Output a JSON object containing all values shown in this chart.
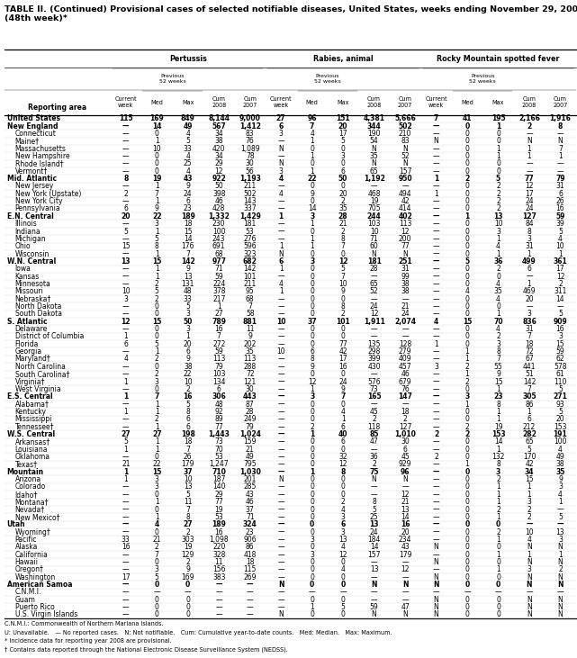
{
  "title_line1": "TABLE II. (Continued) Provisional cases of selected notifiable diseases, United States, weeks ending November 29, 2008, and December 1, 2007",
  "title_line2": "(48th week)*",
  "footnotes": [
    "C.N.M.I.: Commonwealth of Northern Mariana Islands.",
    "U: Unavailable.   — No reported cases.   N: Not notifiable.   Cum: Cumulative year-to-date counts.   Med: Median.   Max: Maximum.",
    "* Incidence data for reporting year 2008 are provisional.",
    "† Contains data reported through the National Electronic Disease Surveillance System (NEDSS)."
  ],
  "col_groups": [
    "Pertussis",
    "Rabies, animal",
    "Rocky Mountain spotted fever"
  ],
  "rows": [
    [
      "United States",
      "115",
      "169",
      "849",
      "8,144",
      "9,000",
      "27",
      "96",
      "151",
      "4,381",
      "5,666",
      "7",
      "41",
      "195",
      "2,166",
      "1,916"
    ],
    [
      "New England",
      "—",
      "14",
      "49",
      "567",
      "1,412",
      "6",
      "7",
      "20",
      "344",
      "502",
      "—",
      "0",
      "1",
      "2",
      "8"
    ],
    [
      "Connecticut",
      "—",
      "0",
      "4",
      "34",
      "83",
      "3",
      "4",
      "17",
      "190",
      "210",
      "—",
      "0",
      "0",
      "—",
      "—"
    ],
    [
      "Maine†",
      "—",
      "1",
      "5",
      "38",
      "76",
      "—",
      "1",
      "5",
      "54",
      "83",
      "N",
      "0",
      "0",
      "N",
      "N"
    ],
    [
      "Massachusetts",
      "—",
      "10",
      "33",
      "420",
      "1,089",
      "N",
      "0",
      "0",
      "N",
      "N",
      "—",
      "0",
      "1",
      "1",
      "7"
    ],
    [
      "New Hampshire",
      "—",
      "0",
      "4",
      "34",
      "78",
      "—",
      "1",
      "3",
      "35",
      "52",
      "—",
      "0",
      "1",
      "1",
      "1"
    ],
    [
      "Rhode Island†",
      "—",
      "0",
      "25",
      "29",
      "30",
      "N",
      "0",
      "0",
      "N",
      "N",
      "—",
      "0",
      "0",
      "—",
      "—"
    ],
    [
      "Vermont†",
      "—",
      "0",
      "4",
      "12",
      "56",
      "3",
      "1",
      "6",
      "65",
      "157",
      "—",
      "0",
      "0",
      "—",
      "—"
    ],
    [
      "Mid. Atlantic",
      "8",
      "19",
      "43",
      "922",
      "1,193",
      "4",
      "22",
      "50",
      "1,192",
      "950",
      "1",
      "2",
      "5",
      "77",
      "79"
    ],
    [
      "New Jersey",
      "—",
      "1",
      "9",
      "50",
      "211",
      "—",
      "0",
      "0",
      "—",
      "—",
      "—",
      "0",
      "2",
      "12",
      "31"
    ],
    [
      "New York (Upstate)",
      "2",
      "7",
      "24",
      "398",
      "502",
      "4",
      "9",
      "20",
      "468",
      "494",
      "1",
      "0",
      "2",
      "17",
      "6"
    ],
    [
      "New York City",
      "—",
      "1",
      "6",
      "46",
      "143",
      "—",
      "0",
      "2",
      "19",
      "42",
      "—",
      "0",
      "2",
      "24",
      "26"
    ],
    [
      "Pennsylvania",
      "6",
      "9",
      "23",
      "428",
      "337",
      "—",
      "14",
      "35",
      "705",
      "414",
      "—",
      "0",
      "2",
      "24",
      "16"
    ],
    [
      "E.N. Central",
      "20",
      "22",
      "189",
      "1,332",
      "1,429",
      "1",
      "3",
      "28",
      "244",
      "402",
      "—",
      "1",
      "13",
      "127",
      "59"
    ],
    [
      "Illinois",
      "—",
      "3",
      "18",
      "230",
      "181",
      "—",
      "1",
      "21",
      "103",
      "113",
      "—",
      "0",
      "10",
      "84",
      "39"
    ],
    [
      "Indiana",
      "5",
      "1",
      "15",
      "100",
      "53",
      "—",
      "0",
      "2",
      "10",
      "12",
      "—",
      "0",
      "3",
      "8",
      "5"
    ],
    [
      "Michigan",
      "—",
      "5",
      "14",
      "243",
      "276",
      "—",
      "1",
      "8",
      "71",
      "200",
      "—",
      "0",
      "1",
      "3",
      "4"
    ],
    [
      "Ohio",
      "15",
      "8",
      "176",
      "691",
      "596",
      "1",
      "1",
      "7",
      "60",
      "77",
      "—",
      "0",
      "4",
      "31",
      "10"
    ],
    [
      "Wisconsin",
      "—",
      "1",
      "7",
      "68",
      "323",
      "N",
      "0",
      "0",
      "N",
      "N",
      "—",
      "0",
      "1",
      "1",
      "1"
    ],
    [
      "W.N. Central",
      "13",
      "15",
      "142",
      "977",
      "682",
      "6",
      "3",
      "12",
      "181",
      "251",
      "—",
      "5",
      "36",
      "499",
      "361"
    ],
    [
      "Iowa",
      "—",
      "1",
      "9",
      "71",
      "142",
      "1",
      "0",
      "5",
      "28",
      "31",
      "—",
      "0",
      "2",
      "6",
      "17"
    ],
    [
      "Kansas",
      "—",
      "1",
      "13",
      "59",
      "101",
      "—",
      "0",
      "7",
      "—",
      "99",
      "—",
      "0",
      "0",
      "—",
      "12"
    ],
    [
      "Minnesota",
      "—",
      "2",
      "131",
      "224",
      "211",
      "4",
      "0",
      "10",
      "65",
      "38",
      "—",
      "0",
      "4",
      "1",
      "2"
    ],
    [
      "Missouri",
      "10",
      "5",
      "48",
      "378",
      "95",
      "1",
      "0",
      "9",
      "52",
      "38",
      "—",
      "4",
      "35",
      "469",
      "311"
    ],
    [
      "Nebraska†",
      "3",
      "2",
      "33",
      "217",
      "68",
      "—",
      "0",
      "0",
      "—",
      "—",
      "—",
      "0",
      "4",
      "20",
      "14"
    ],
    [
      "North Dakota",
      "—",
      "0",
      "5",
      "1",
      "7",
      "—",
      "0",
      "8",
      "24",
      "21",
      "—",
      "0",
      "0",
      "—",
      "—"
    ],
    [
      "South Dakota",
      "—",
      "0",
      "3",
      "27",
      "58",
      "—",
      "0",
      "2",
      "12",
      "24",
      "—",
      "0",
      "1",
      "3",
      "5"
    ],
    [
      "S. Atlantic",
      "12",
      "15",
      "50",
      "789",
      "881",
      "10",
      "37",
      "101",
      "1,911",
      "2,074",
      "4",
      "15",
      "70",
      "836",
      "909"
    ],
    [
      "Delaware",
      "—",
      "0",
      "3",
      "16",
      "11",
      "—",
      "0",
      "0",
      "—",
      "—",
      "—",
      "0",
      "4",
      "31",
      "16"
    ],
    [
      "District of Columbia",
      "1",
      "0",
      "1",
      "7",
      "9",
      "—",
      "0",
      "0",
      "—",
      "—",
      "—",
      "0",
      "2",
      "7",
      "3"
    ],
    [
      "Florida",
      "6",
      "5",
      "20",
      "272",
      "202",
      "—",
      "0",
      "77",
      "135",
      "128",
      "1",
      "0",
      "3",
      "18",
      "15"
    ],
    [
      "Georgia",
      "—",
      "1",
      "6",
      "59",
      "35",
      "10",
      "6",
      "42",
      "298",
      "279",
      "—",
      "1",
      "8",
      "72",
      "59"
    ],
    [
      "Maryland†",
      "4",
      "2",
      "9",
      "113",
      "113",
      "—",
      "8",
      "17",
      "399",
      "409",
      "—",
      "1",
      "7",
      "67",
      "62"
    ],
    [
      "North Carolina",
      "—",
      "0",
      "38",
      "79",
      "288",
      "—",
      "9",
      "16",
      "430",
      "457",
      "3",
      "2",
      "55",
      "441",
      "578"
    ],
    [
      "South Carolina†",
      "—",
      "2",
      "22",
      "103",
      "72",
      "—",
      "0",
      "0",
      "—",
      "46",
      "—",
      "1",
      "9",
      "51",
      "61"
    ],
    [
      "Virginia†",
      "1",
      "3",
      "10",
      "134",
      "121",
      "—",
      "12",
      "24",
      "576",
      "679",
      "—",
      "2",
      "15",
      "142",
      "110"
    ],
    [
      "West Virginia",
      "—",
      "0",
      "2",
      "6",
      "30",
      "—",
      "1",
      "9",
      "73",
      "76",
      "—",
      "0",
      "1",
      "7",
      "5"
    ],
    [
      "E.S. Central",
      "1",
      "7",
      "16",
      "306",
      "443",
      "—",
      "3",
      "7",
      "165",
      "147",
      "—",
      "3",
      "23",
      "305",
      "271"
    ],
    [
      "Alabama†",
      "—",
      "1",
      "5",
      "48",
      "87",
      "—",
      "0",
      "0",
      "—",
      "—",
      "—",
      "1",
      "8",
      "86",
      "93"
    ],
    [
      "Kentucky",
      "1",
      "1",
      "8",
      "92",
      "28",
      "—",
      "0",
      "4",
      "45",
      "18",
      "—",
      "0",
      "1",
      "1",
      "5"
    ],
    [
      "Mississippi",
      "—",
      "2",
      "6",
      "89",
      "249",
      "—",
      "0",
      "1",
      "2",
      "2",
      "—",
      "0",
      "1",
      "6",
      "20"
    ],
    [
      "Tennessee†",
      "—",
      "1",
      "6",
      "77",
      "79",
      "—",
      "2",
      "6",
      "118",
      "127",
      "—",
      "2",
      "19",
      "212",
      "153"
    ],
    [
      "W.S. Central",
      "27",
      "27",
      "198",
      "1,443",
      "1,024",
      "—",
      "1",
      "40",
      "85",
      "1,010",
      "2",
      "2",
      "153",
      "282",
      "191"
    ],
    [
      "Arkansas†",
      "5",
      "1",
      "18",
      "73",
      "159",
      "—",
      "0",
      "6",
      "47",
      "30",
      "—",
      "0",
      "14",
      "65",
      "100"
    ],
    [
      "Louisiana",
      "1",
      "1",
      "7",
      "70",
      "21",
      "—",
      "0",
      "0",
      "—",
      "6",
      "—",
      "0",
      "1",
      "5",
      "4"
    ],
    [
      "Oklahoma",
      "—",
      "0",
      "26",
      "53",
      "49",
      "—",
      "0",
      "32",
      "36",
      "45",
      "2",
      "0",
      "132",
      "170",
      "49"
    ],
    [
      "Texas†",
      "21",
      "22",
      "179",
      "1,247",
      "795",
      "—",
      "0",
      "12",
      "2",
      "929",
      "—",
      "1",
      "8",
      "42",
      "38"
    ],
    [
      "Mountain",
      "1",
      "15",
      "37",
      "710",
      "1,030",
      "—",
      "1",
      "8",
      "75",
      "96",
      "—",
      "0",
      "3",
      "34",
      "35"
    ],
    [
      "Arizona",
      "1",
      "3",
      "10",
      "187",
      "201",
      "N",
      "0",
      "0",
      "N",
      "N",
      "—",
      "0",
      "2",
      "15",
      "9"
    ],
    [
      "Colorado",
      "—",
      "3",
      "13",
      "140",
      "285",
      "—",
      "0",
      "0",
      "—",
      "—",
      "—",
      "0",
      "1",
      "1",
      "3"
    ],
    [
      "Idaho†",
      "—",
      "0",
      "5",
      "29",
      "43",
      "—",
      "0",
      "0",
      "—",
      "12",
      "—",
      "0",
      "1",
      "1",
      "4"
    ],
    [
      "Montana†",
      "—",
      "1",
      "11",
      "77",
      "46",
      "—",
      "0",
      "2",
      "8",
      "21",
      "—",
      "0",
      "1",
      "3",
      "1"
    ],
    [
      "Nevada†",
      "—",
      "0",
      "7",
      "19",
      "37",
      "—",
      "0",
      "4",
      "5",
      "13",
      "—",
      "0",
      "2",
      "2",
      "—"
    ],
    [
      "New Mexico†",
      "—",
      "1",
      "8",
      "53",
      "71",
      "—",
      "0",
      "3",
      "25",
      "14",
      "—",
      "0",
      "1",
      "2",
      "5"
    ],
    [
      "Utah",
      "—",
      "4",
      "27",
      "189",
      "324",
      "—",
      "0",
      "6",
      "13",
      "16",
      "—",
      "0",
      "0",
      "—",
      "—"
    ],
    [
      "Wyoming†",
      "—",
      "0",
      "2",
      "16",
      "23",
      "—",
      "0",
      "3",
      "24",
      "20",
      "—",
      "0",
      "2",
      "10",
      "13"
    ],
    [
      "Pacific",
      "33",
      "21",
      "303",
      "1,098",
      "906",
      "—",
      "3",
      "13",
      "184",
      "234",
      "—",
      "0",
      "1",
      "4",
      "3"
    ],
    [
      "Alaska",
      "16",
      "2",
      "19",
      "220",
      "86",
      "—",
      "0",
      "4",
      "14",
      "43",
      "N",
      "0",
      "0",
      "N",
      "N"
    ],
    [
      "California",
      "—",
      "7",
      "129",
      "328",
      "418",
      "—",
      "3",
      "12",
      "157",
      "179",
      "—",
      "0",
      "1",
      "1",
      "1"
    ],
    [
      "Hawaii",
      "—",
      "0",
      "2",
      "11",
      "18",
      "—",
      "0",
      "0",
      "—",
      "—",
      "N",
      "0",
      "0",
      "N",
      "N"
    ],
    [
      "Oregon†",
      "—",
      "3",
      "9",
      "156",
      "115",
      "—",
      "0",
      "4",
      "13",
      "12",
      "—",
      "0",
      "1",
      "3",
      "2"
    ],
    [
      "Washington",
      "17",
      "5",
      "169",
      "383",
      "269",
      "—",
      "0",
      "0",
      "—",
      "—",
      "N",
      "0",
      "0",
      "N",
      "N"
    ],
    [
      "American Samoa",
      "—",
      "0",
      "0",
      "—",
      "—",
      "N",
      "0",
      "0",
      "N",
      "N",
      "N",
      "0",
      "0",
      "N",
      "N"
    ],
    [
      "C.N.M.I.",
      "—",
      "—",
      "—",
      "—",
      "—",
      "—",
      "—",
      "—",
      "—",
      "—",
      "—",
      "—",
      "—",
      "—",
      "—"
    ],
    [
      "Guam",
      "—",
      "0",
      "0",
      "—",
      "—",
      "—",
      "0",
      "0",
      "—",
      "—",
      "N",
      "0",
      "0",
      "N",
      "N"
    ],
    [
      "Puerto Rico",
      "—",
      "0",
      "0",
      "—",
      "—",
      "—",
      "1",
      "5",
      "59",
      "47",
      "N",
      "0",
      "0",
      "N",
      "N"
    ],
    [
      "U.S. Virgin Islands",
      "—",
      "0",
      "0",
      "—",
      "—",
      "N",
      "0",
      "0",
      "N",
      "N",
      "N",
      "0",
      "0",
      "N",
      "N"
    ]
  ],
  "bold_rows": [
    0,
    1,
    8,
    13,
    19,
    27,
    37,
    42,
    47,
    54,
    62
  ],
  "background_color": "#ffffff",
  "font_size": 5.5,
  "title_font_size": 6.8
}
